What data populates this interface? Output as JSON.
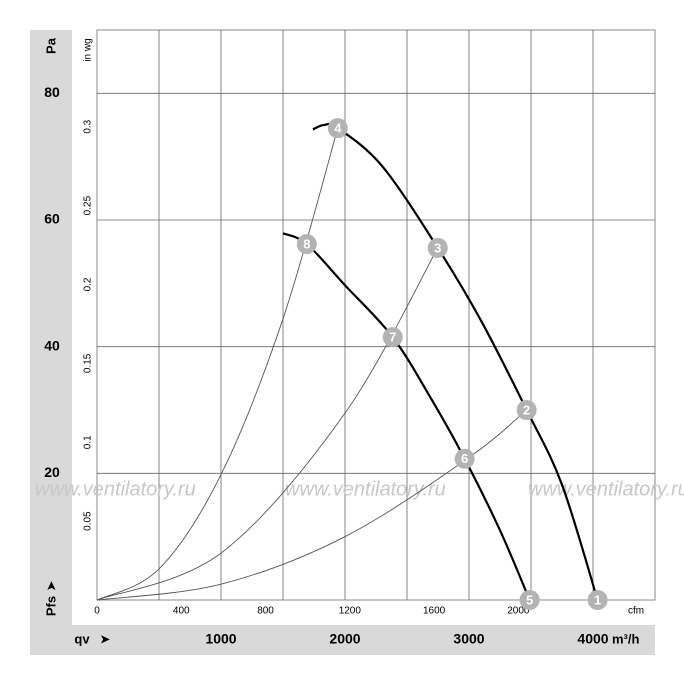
{
  "chart_data": {
    "type": "line",
    "xlim": [
      0,
      4500
    ],
    "ylim": [
      0,
      90
    ],
    "x2lim": [
      0,
      2648.6
    ],
    "y2lim": [
      0,
      0.3613
    ],
    "x_label": "qv",
    "x_unit": "m³/h",
    "y_label": "Pa",
    "y_label_bottom": "Pfs",
    "x2_unit": "cfm",
    "y2_unit": "in wg",
    "xticks": [
      1000,
      2000,
      3000,
      4000
    ],
    "xgrid": [
      500,
      1000,
      1500,
      2000,
      2500,
      3000,
      3500,
      4000
    ],
    "yticks": [
      20,
      40,
      60,
      80
    ],
    "x2ticks": [
      0,
      400,
      800,
      1200,
      1600,
      2000
    ],
    "y2ticks": [
      0.05,
      0.1,
      0.15,
      0.2,
      0.25,
      0.3
    ],
    "watermark": "www.ventilatory.ru",
    "series": [
      {
        "color": "#000000",
        "x": [
          1741,
          1830,
          1942,
          2300,
          2748,
          3100,
          3465,
          3750,
          4037
        ],
        "values": [
          74.3,
          75.0,
          74.5,
          68.5,
          55.6,
          44,
          30.0,
          18.2,
          0
        ]
      },
      {
        "color": "#000000",
        "x": [
          1499,
          1692,
          2000,
          2385,
          2700,
          2965,
          3250,
          3489
        ],
        "values": [
          57.9,
          56.2,
          49.7,
          41.5,
          31.6,
          22.3,
          11.0,
          0
        ]
      },
      {
        "color": "#555555",
        "x": [
          0,
          500,
          1000,
          1500,
          1942
        ],
        "values": [
          0,
          4.9,
          19.8,
          44.4,
          74.5
        ]
      },
      {
        "color": "#555555",
        "x": [
          0,
          1000,
          2000,
          2748
        ],
        "values": [
          0,
          7.4,
          29.5,
          55.6
        ]
      },
      {
        "color": "#555555",
        "x": [
          0,
          1000,
          2000,
          3000,
          3465
        ],
        "values": [
          0,
          2.5,
          10.0,
          22.5,
          30.0
        ]
      }
    ],
    "points": [
      {
        "label": "1",
        "x": 4037,
        "y": 0
      },
      {
        "label": "2",
        "x": 3465,
        "y": 30.0
      },
      {
        "label": "3",
        "x": 2748,
        "y": 55.6
      },
      {
        "label": "4",
        "x": 1942,
        "y": 74.5
      },
      {
        "label": "5",
        "x": 3489,
        "y": 0
      },
      {
        "label": "6",
        "x": 2965,
        "y": 22.3
      },
      {
        "label": "7",
        "x": 2385,
        "y": 41.5
      },
      {
        "label": "8",
        "x": 1692,
        "y": 56.2
      }
    ]
  }
}
